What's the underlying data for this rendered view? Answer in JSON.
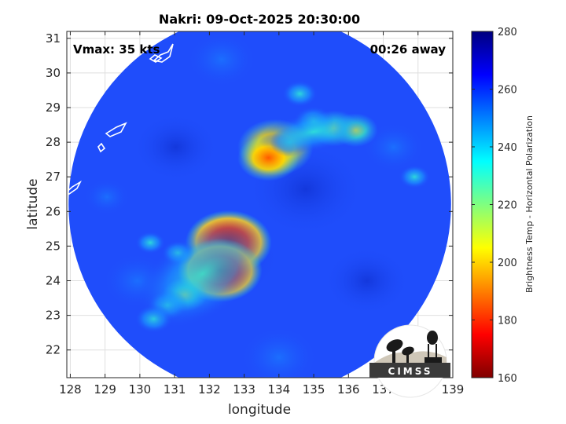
{
  "chart_data": {
    "type": "heatmap",
    "title": "Nakri: 09-Oct-2025 20:30:00",
    "xlabel": "longitude",
    "ylabel": "latitude",
    "xlim": [
      127.9,
      139.0
    ],
    "ylim": [
      21.2,
      31.2
    ],
    "xticks": [
      "128",
      "129",
      "130",
      "131",
      "132",
      "133",
      "134",
      "135",
      "136",
      "137",
      "138",
      "139"
    ],
    "yticks": [
      "22",
      "23",
      "24",
      "25",
      "26",
      "27",
      "28",
      "29",
      "30",
      "31"
    ],
    "grid": true,
    "annotations": {
      "left": "Vmax: 35 kts",
      "right": "00:26 away"
    },
    "colorbar": {
      "label": "Brightness Temp - Horizontal Polarization",
      "range": [
        160,
        280
      ],
      "ticks": [
        "160",
        "180",
        "200",
        "220",
        "240",
        "260",
        "280"
      ],
      "colormap": "jet"
    },
    "swath": {
      "center_lon": 133.45,
      "center_lat": 26.2,
      "radius_deg": 5.5,
      "background_value": 262
    },
    "features": [
      {
        "lon": 132.55,
        "lat": 25.1,
        "value": 168
      },
      {
        "lon": 132.3,
        "lat": 24.3,
        "value": 170
      },
      {
        "lon": 133.9,
        "lat": 27.85,
        "value": 182
      },
      {
        "lon": 133.7,
        "lat": 27.55,
        "value": 200
      },
      {
        "lon": 135.6,
        "lat": 28.4,
        "value": 218
      },
      {
        "lon": 136.2,
        "lat": 28.35,
        "value": 222
      },
      {
        "lon": 135.0,
        "lat": 28.6,
        "value": 228
      },
      {
        "lon": 134.6,
        "lat": 29.4,
        "value": 235
      },
      {
        "lon": 134.3,
        "lat": 28.0,
        "value": 230
      },
      {
        "lon": 131.3,
        "lat": 23.6,
        "value": 222
      },
      {
        "lon": 130.8,
        "lat": 23.3,
        "value": 228
      },
      {
        "lon": 130.4,
        "lat": 22.9,
        "value": 232
      },
      {
        "lon": 131.1,
        "lat": 24.8,
        "value": 238
      },
      {
        "lon": 130.3,
        "lat": 25.1,
        "value": 242
      },
      {
        "lon": 137.9,
        "lat": 27.0,
        "value": 240
      }
    ]
  },
  "logo": {
    "text": "CIMSS"
  },
  "colors": {
    "swath": "#1f4dfb",
    "land_outline": "#ffffff",
    "frame": "#262626"
  }
}
